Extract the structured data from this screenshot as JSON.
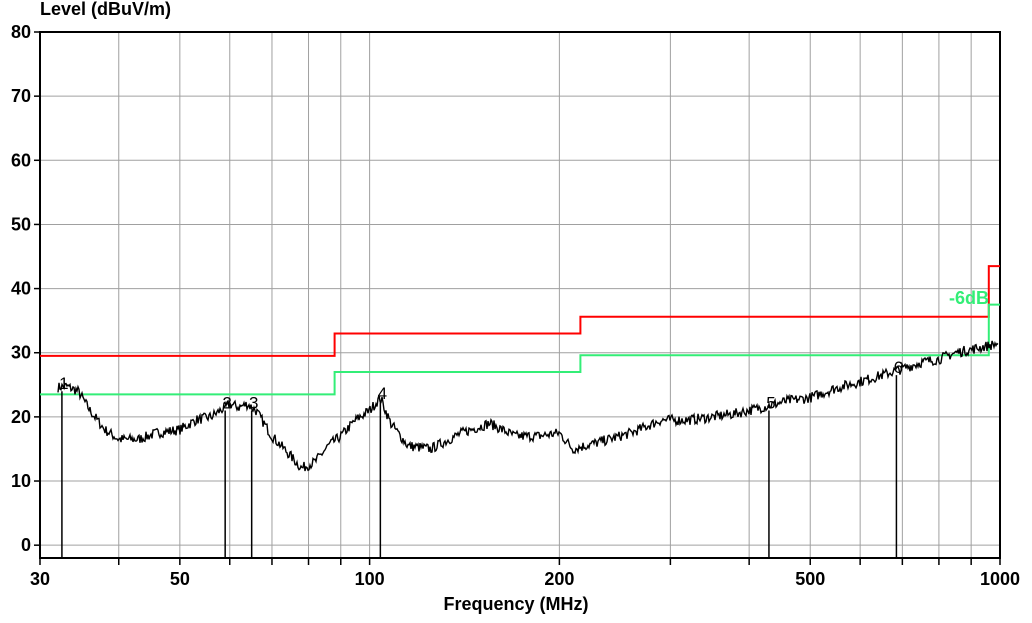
{
  "chart_data": {
    "type": "line",
    "ylabel": "Level (dBuV/m)",
    "xlabel": "Frequency (MHz)",
    "x_scale": "log",
    "xlim": [
      30,
      1000
    ],
    "ylim": [
      -2,
      80
    ],
    "grid": true,
    "x_ticks": [
      30,
      40,
      50,
      60,
      70,
      80,
      90,
      100,
      200,
      300,
      400,
      500,
      600,
      700,
      800,
      900,
      1000
    ],
    "x_tick_labels": [
      {
        "value": 30,
        "label": "30"
      },
      {
        "value": 50,
        "label": "50"
      },
      {
        "value": 100,
        "label": "100"
      },
      {
        "value": 200,
        "label": "200"
      },
      {
        "value": 500,
        "label": "500"
      },
      {
        "value": 1000,
        "label": "1000"
      }
    ],
    "y_ticks": [
      {
        "value": 0,
        "label": "0"
      },
      {
        "value": 10,
        "label": "10"
      },
      {
        "value": 20,
        "label": "20"
      },
      {
        "value": 30,
        "label": "30"
      },
      {
        "value": 40,
        "label": "40"
      },
      {
        "value": 50,
        "label": "50"
      },
      {
        "value": 60,
        "label": "60"
      },
      {
        "value": 70,
        "label": "70"
      },
      {
        "value": 80,
        "label": "80"
      }
    ],
    "series": [
      {
        "color": "#ff0000",
        "style": "step",
        "x": [
          30,
          88,
          88,
          216,
          216,
          960,
          960,
          1000
        ],
        "y": [
          29.5,
          29.5,
          33,
          33,
          35.6,
          35.6,
          43.5,
          43.5
        ]
      },
      {
        "color": "#33ee77",
        "style": "step",
        "x": [
          30,
          88,
          88,
          216,
          216,
          960,
          960,
          1000
        ],
        "y": [
          23.5,
          23.5,
          27,
          27,
          29.6,
          29.6,
          37.5,
          37.5
        ]
      },
      {
        "color": "#000000",
        "style": "noisy",
        "x": [
          30,
          31.5,
          33,
          34.5,
          36,
          38,
          40,
          43,
          46,
          50,
          53,
          56,
          58,
          60,
          62,
          64,
          66,
          70,
          74,
          78,
          82,
          86,
          90,
          95,
          100,
          104,
          108,
          115,
          125,
          140,
          155,
          170,
          185,
          200,
          210,
          230,
          260,
          290,
          320,
          350,
          380,
          420,
          460,
          500,
          550,
          600,
          650,
          700,
          750,
          800,
          850,
          900,
          950,
          1000
        ],
        "y": [
          24,
          24.5,
          24.8,
          24,
          21,
          18,
          16.5,
          16.5,
          17.5,
          18,
          19.5,
          20,
          21,
          22,
          21.5,
          22,
          21,
          17,
          14.5,
          12,
          13,
          15.5,
          17,
          19.5,
          21,
          23,
          19,
          15.5,
          15,
          17.5,
          19,
          17,
          17,
          17.5,
          15,
          16,
          17.5,
          19.5,
          19.5,
          20,
          20.5,
          21.5,
          22.5,
          23,
          24.5,
          25.5,
          26.5,
          27.5,
          28.5,
          29,
          30,
          30.5,
          31,
          31.5
        ]
      }
    ],
    "markers": [
      {
        "label": "1",
        "x": 32.5,
        "y": 24
      },
      {
        "label": "2",
        "x": 59,
        "y": 21
      },
      {
        "label": "3",
        "x": 65,
        "y": 21
      },
      {
        "label": "4",
        "x": 104,
        "y": 22.5
      },
      {
        "label": "5",
        "x": 430,
        "y": 21
      },
      {
        "label": "6",
        "x": 685,
        "y": 26.5
      }
    ],
    "annotations": [
      {
        "text": "-6dB",
        "x": 830,
        "y": 38.5,
        "color": "#33ee77"
      }
    ]
  }
}
